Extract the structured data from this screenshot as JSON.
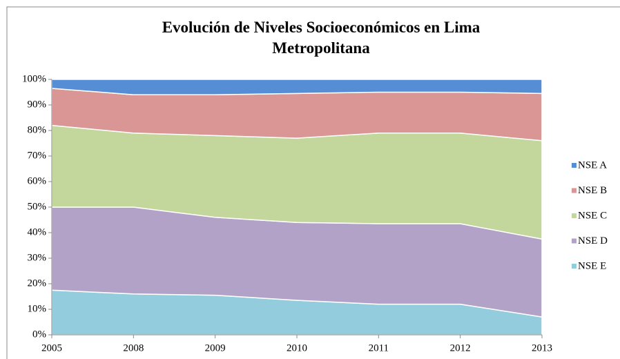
{
  "chart_data": {
    "type": "stacked_area",
    "title": "Evolución de Niveles Socioeconómicos en Lima Metropolitana",
    "categories": [
      "2005",
      "2008",
      "2009",
      "2010",
      "2011",
      "2012",
      "2013"
    ],
    "series": [
      {
        "name": "NSE A",
        "color": "#558ed5",
        "values": [
          3.5,
          6,
          6,
          5.5,
          5,
          5,
          5.5
        ]
      },
      {
        "name": "NSE B",
        "color": "#d99694",
        "values": [
          14.5,
          15,
          16,
          17.5,
          16,
          16,
          18.5
        ]
      },
      {
        "name": "NSE C",
        "color": "#c3d69b",
        "values": [
          32,
          29,
          32,
          33,
          35.5,
          35.5,
          38.5
        ]
      },
      {
        "name": "NSE D",
        "color": "#b3a2c7",
        "values": [
          32.5,
          34,
          30.5,
          30.5,
          31.5,
          31.5,
          30.5
        ]
      },
      {
        "name": "NSE E",
        "color": "#93cddd",
        "values": [
          17.5,
          16,
          15.5,
          13.5,
          12,
          12,
          7
        ]
      }
    ],
    "ylim": [
      0,
      100
    ],
    "yticks": [
      {
        "value": 0,
        "label": "0%"
      },
      {
        "value": 10,
        "label": "10%"
      },
      {
        "value": 20,
        "label": "20%"
      },
      {
        "value": 30,
        "label": "30%"
      },
      {
        "value": 40,
        "label": "40%"
      },
      {
        "value": 50,
        "label": "50%"
      },
      {
        "value": 60,
        "label": "60%"
      },
      {
        "value": 70,
        "label": "70%"
      },
      {
        "value": 80,
        "label": "80%"
      },
      {
        "value": 90,
        "label": "90%"
      },
      {
        "value": 100,
        "label": "100%"
      }
    ],
    "legend": "right"
  }
}
